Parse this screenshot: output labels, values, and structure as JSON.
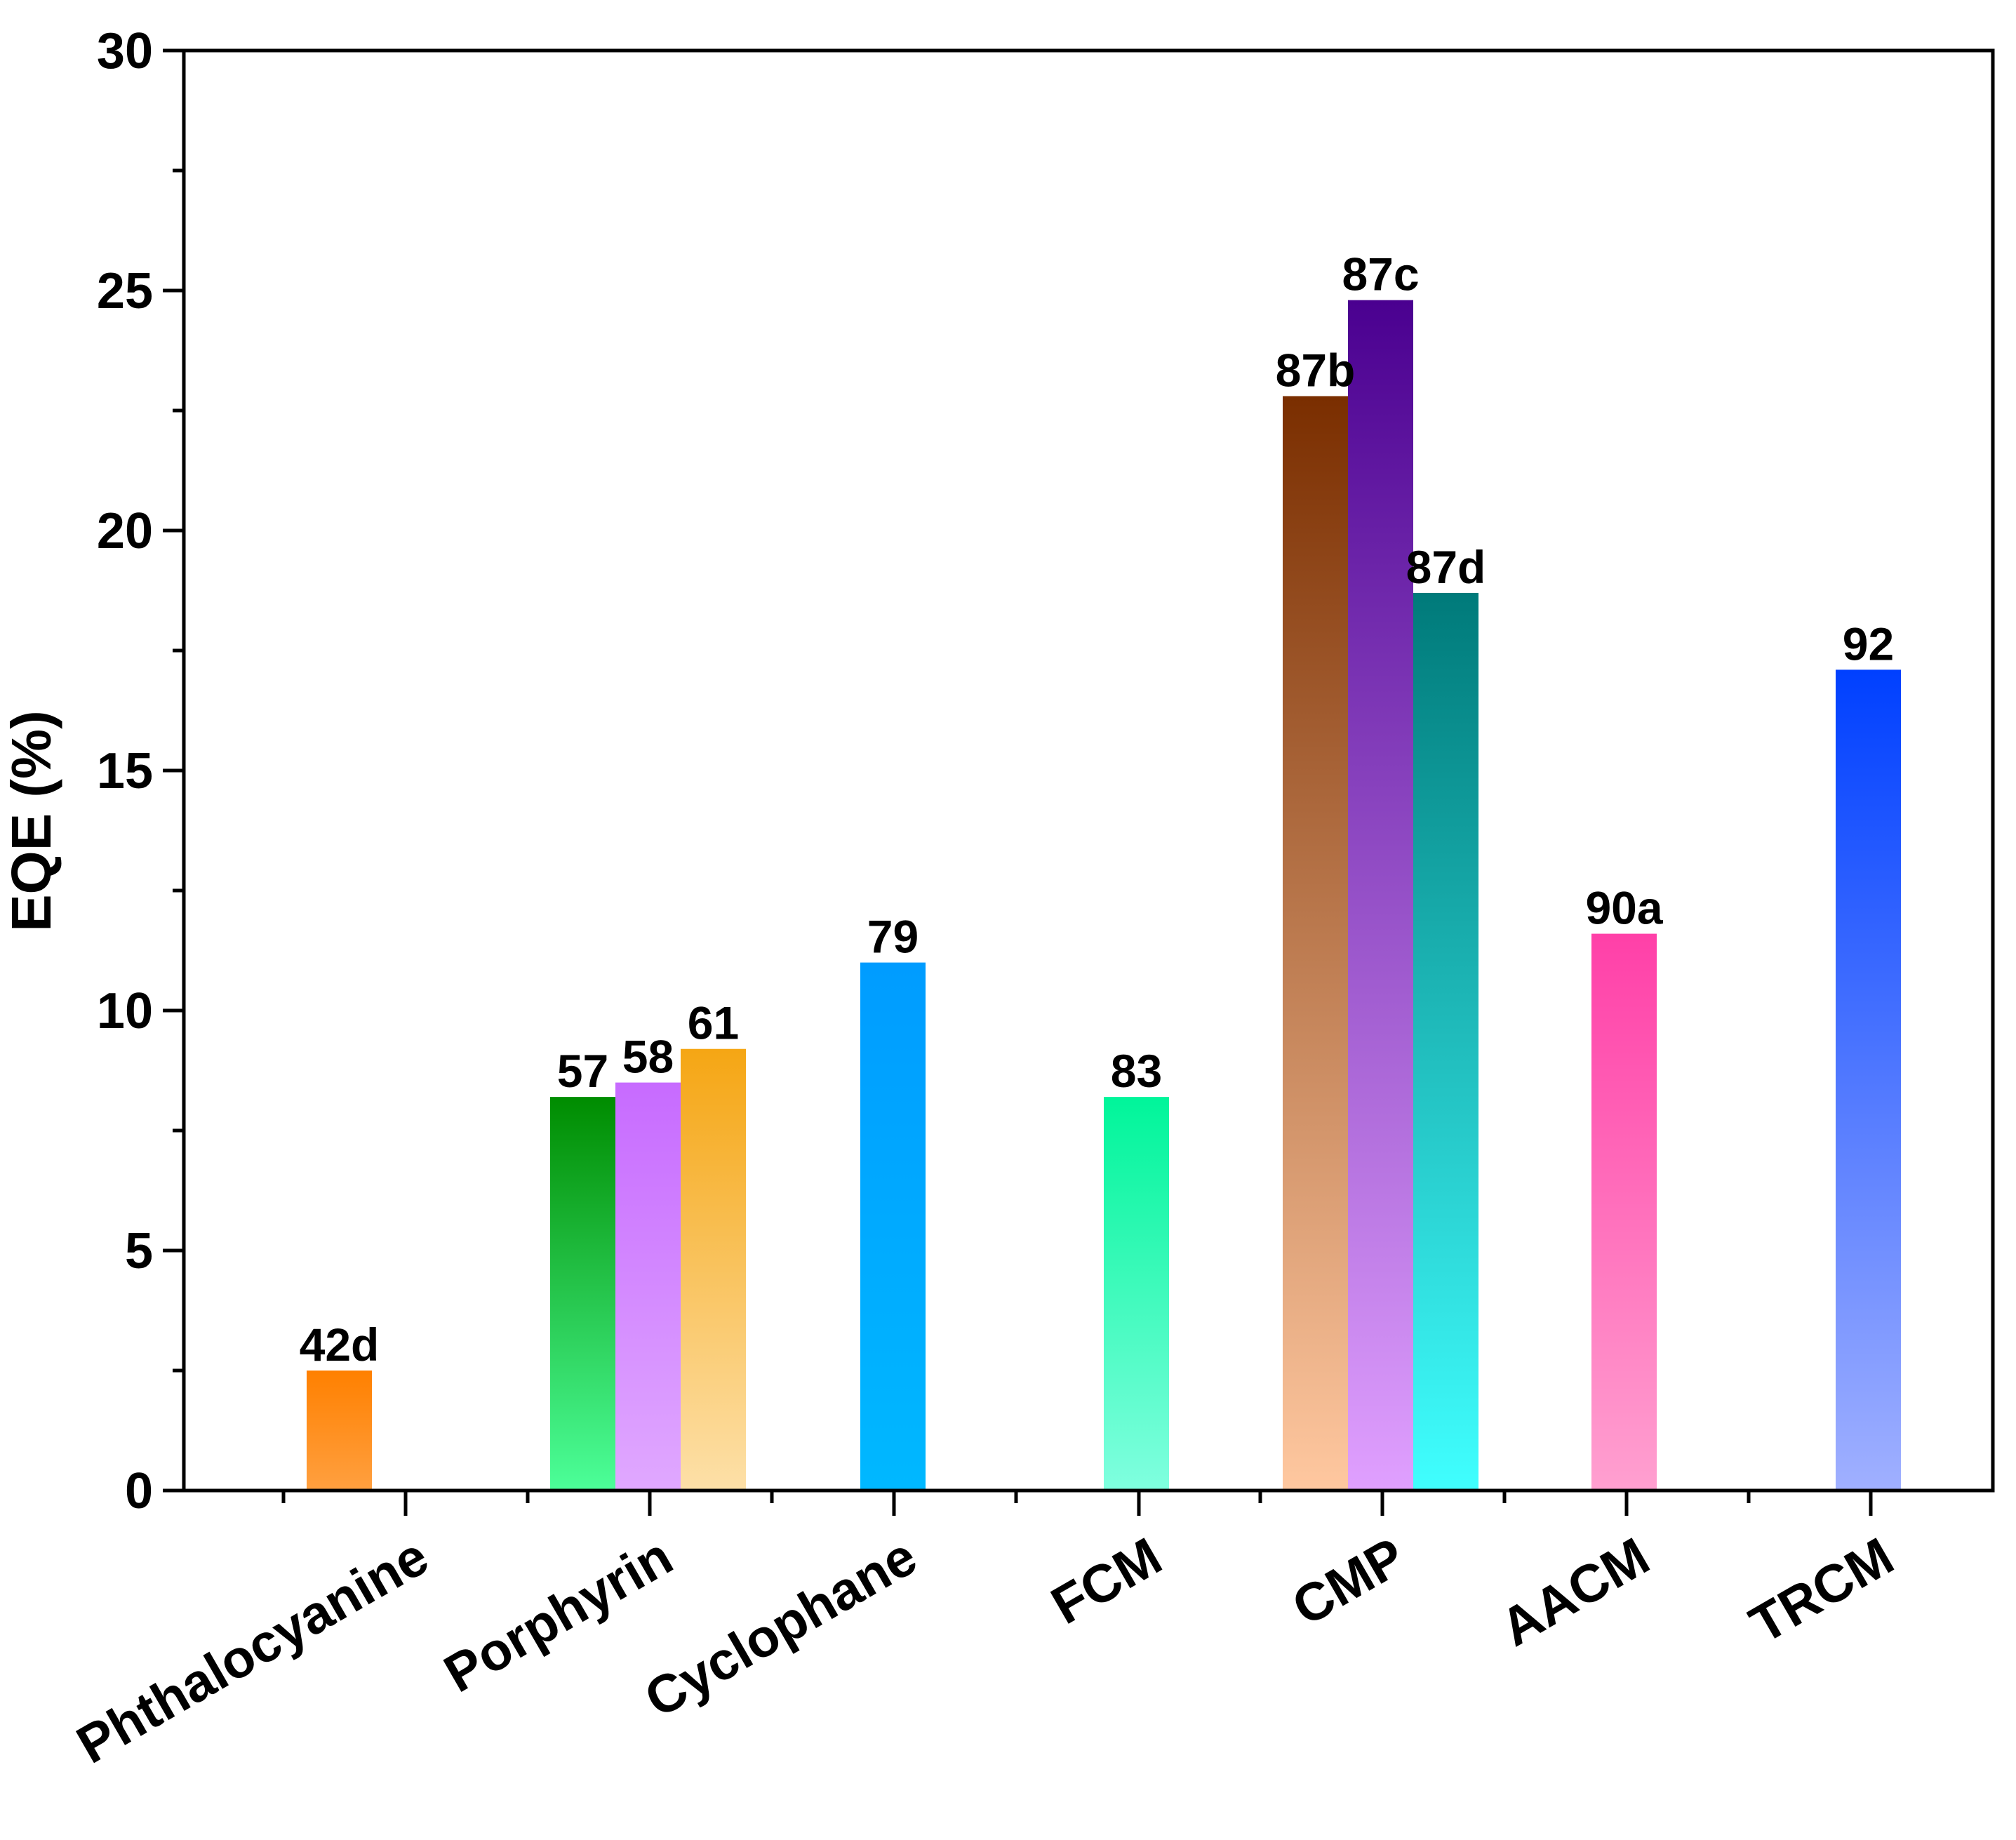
{
  "chart_data": {
    "type": "bar",
    "title": "",
    "xlabel": "",
    "ylabel": "EQE (%)",
    "ylim": [
      0,
      30
    ],
    "yticks": [
      0,
      5,
      10,
      15,
      20,
      25,
      30
    ],
    "grid": false,
    "categories": [
      "Phthalocyanine",
      "Porphyrin",
      "Cyclophane",
      "FCM",
      "CMP",
      "AACM",
      "TRCM"
    ],
    "bars": [
      {
        "category": "Phthalocyanine",
        "label": "42d",
        "value": 2.5,
        "color_top": "#ff8000",
        "color_bottom": "#ffa040"
      },
      {
        "category": "Porphyrin",
        "label": "57",
        "value": 8.2,
        "color_top": "#008c00",
        "color_bottom": "#4cff99"
      },
      {
        "category": "Porphyrin",
        "label": "58",
        "value": 8.5,
        "color_top": "#c76bff",
        "color_bottom": "#e0a8ff"
      },
      {
        "category": "Porphyrin",
        "label": "61",
        "value": 9.2,
        "color_top": "#f5a614",
        "color_bottom": "#fde0a8"
      },
      {
        "category": "Cyclophane",
        "label": "79",
        "value": 11.0,
        "color_top": "#009cff",
        "color_bottom": "#00b8ff"
      },
      {
        "category": "FCM",
        "label": "83",
        "value": 8.2,
        "color_top": "#00f59a",
        "color_bottom": "#80ffdf"
      },
      {
        "category": "CMP",
        "label": "87b",
        "value": 22.8,
        "color_top": "#7a2e00",
        "color_bottom": "#ffc8a0"
      },
      {
        "category": "CMP",
        "label": "87c",
        "value": 24.8,
        "color_top": "#4a0090",
        "color_bottom": "#e0a0ff"
      },
      {
        "category": "CMP",
        "label": "87d",
        "value": 18.7,
        "color_top": "#007a7a",
        "color_bottom": "#40ffff"
      },
      {
        "category": "AACM",
        "label": "90a",
        "value": 11.6,
        "color_top": "#ff40a8",
        "color_bottom": "#ffa0d0"
      },
      {
        "category": "TRCM",
        "label": "92",
        "value": 17.1,
        "color_top": "#0040ff",
        "color_bottom": "#a0b0ff"
      }
    ]
  }
}
